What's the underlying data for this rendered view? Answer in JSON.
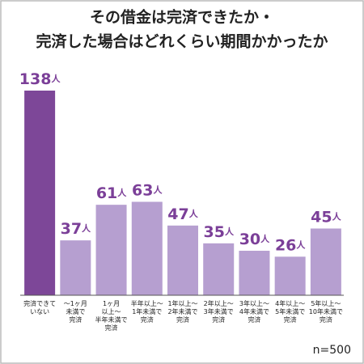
{
  "chart_data": {
    "type": "bar",
    "title": [
      "その借金は完済できたか・",
      "完済した場合はどれくらい期間かかったか"
    ],
    "categories": [
      "完済できて\nいない",
      "～1ヶ月\n未満で\n完済",
      "1ヶ月\n以上～\n半年未満で\n完済",
      "半年以上～\n1年未満で\n完済",
      "1年以上～\n2年未満で\n完済",
      "2年以上～\n3年未満で\n完済",
      "3年以上～\n4年未満で\n完済",
      "4年以上～\n5年未満で\n完済",
      "5年以上～\n10年未満で\n完済"
    ],
    "values": [
      138,
      37,
      61,
      63,
      47,
      35,
      30,
      26,
      45
    ],
    "value_labels": [
      "138人",
      "37人",
      "61人",
      "63人",
      "47人",
      "35人",
      "30人",
      "26人",
      "45人"
    ],
    "colors": [
      "#7d4798",
      "#b69fd0",
      "#b69fd0",
      "#b69fd0",
      "#b69fd0",
      "#b69fd0",
      "#b69fd0",
      "#b69fd0",
      "#b69fd0"
    ],
    "note": "n=500"
  }
}
